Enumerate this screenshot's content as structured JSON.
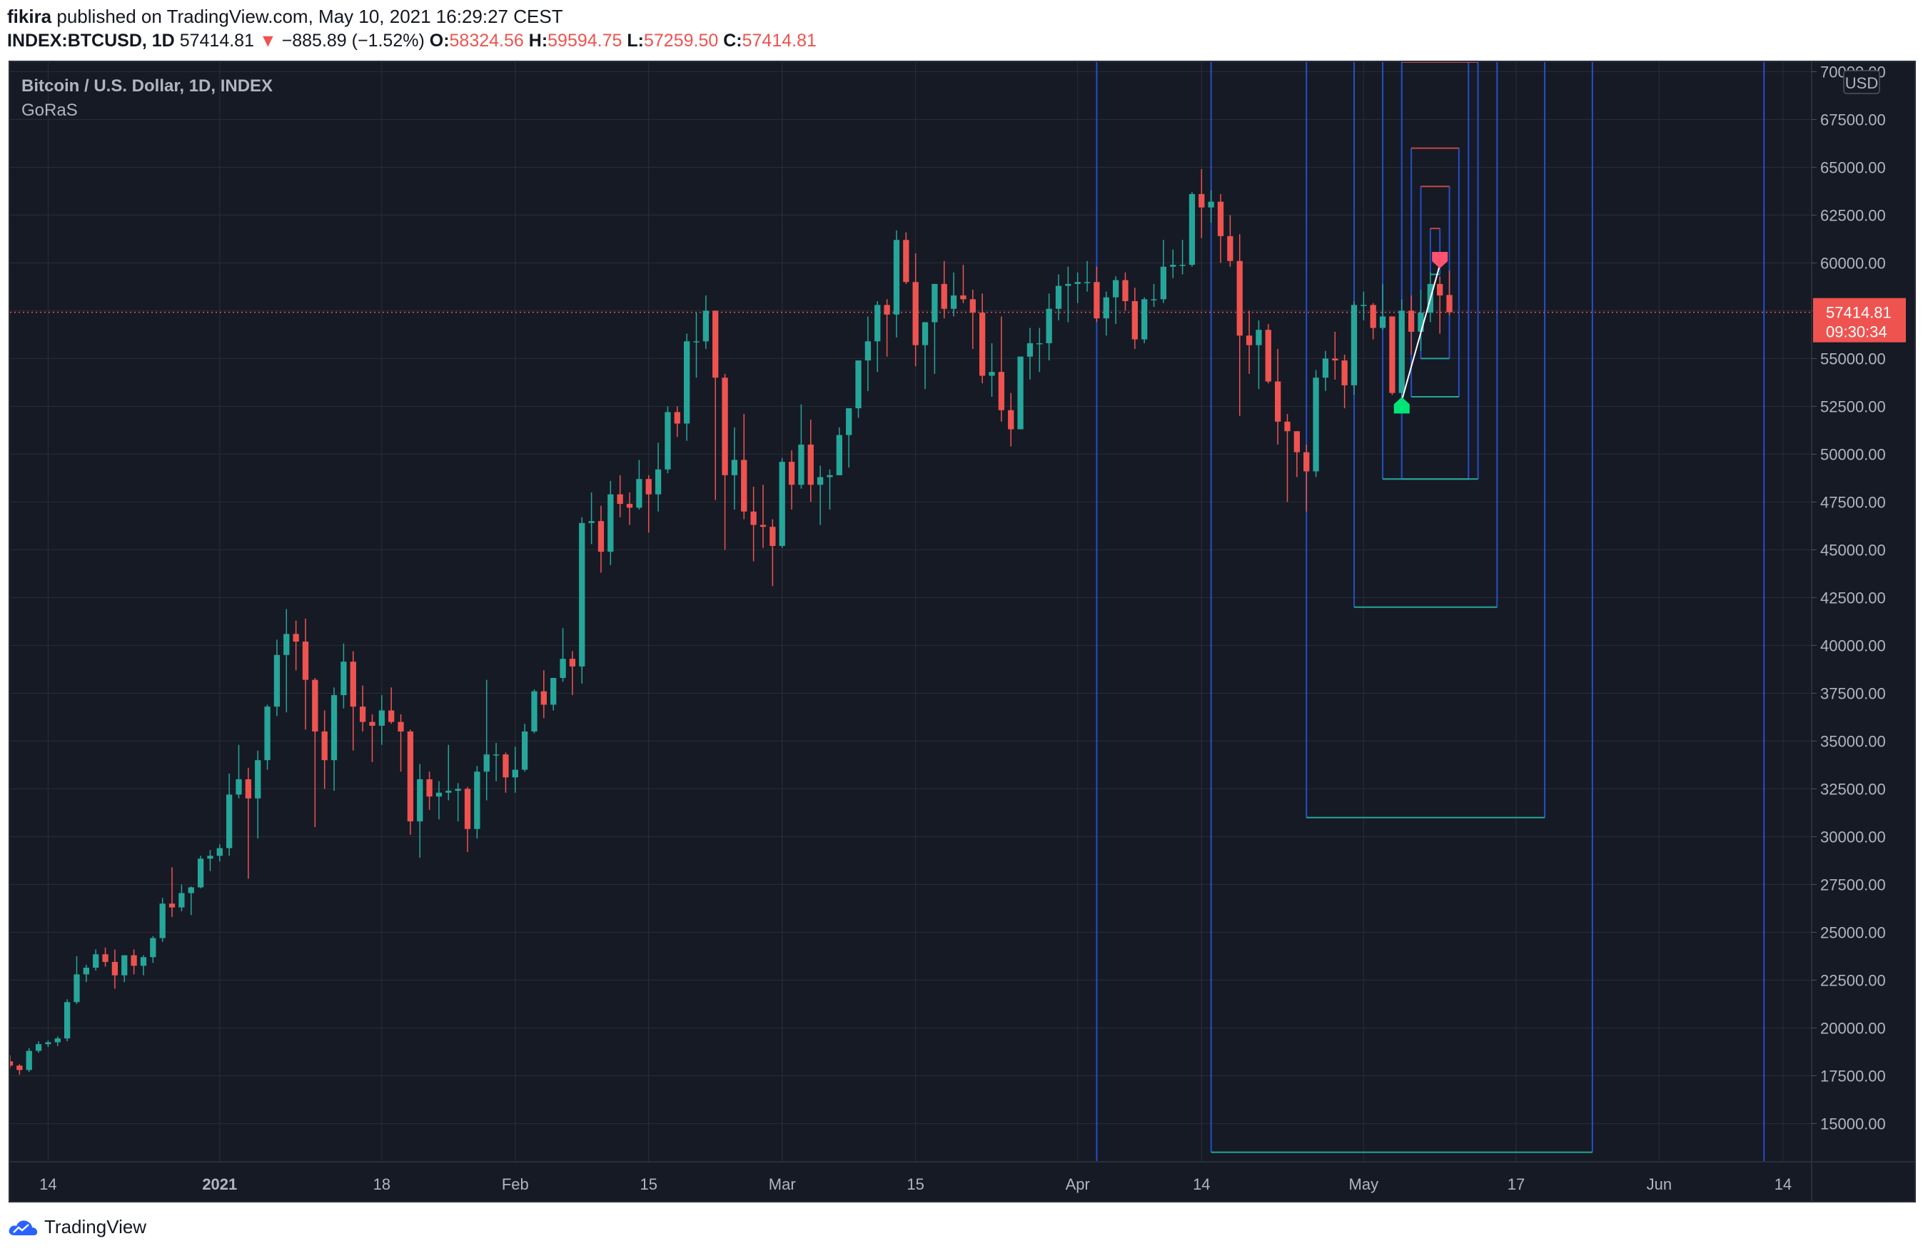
{
  "publish": {
    "user": "fikira",
    "text": "published on TradingView.com, May 10, 2021 16:29:27 CEST"
  },
  "symbol": {
    "ticker": "INDEX:BTCUSD, 1D",
    "last": "57414.81",
    "arrow": "▼",
    "change": "−885.89 (−1.52%)",
    "o_label": "O:",
    "o": "58324.56",
    "h_label": "H:",
    "h": "59594.75",
    "l_label": "L:",
    "l": "57259.50",
    "c_label": "C:",
    "c": "57414.81"
  },
  "legend": {
    "title": "Bitcoin / U.S. Dollar, 1D, INDEX",
    "indicator": "GoRaS"
  },
  "price_axis": {
    "currency": "USD",
    "last_price_label": "57414.81",
    "countdown": "09:30:34"
  },
  "footer": {
    "brand": "TradingView"
  },
  "colors": {
    "background": "#161a25",
    "grid": "#2a2e39",
    "up": "#26a69a",
    "down": "#ef5350",
    "box_side": "#2962ff",
    "box_low": "#26a69a",
    "box_high": "#ef5350",
    "signal_up": "#00e676",
    "signal_down": "#ff5370"
  },
  "chart_data": {
    "type": "candlestick",
    "title": "Bitcoin / U.S. Dollar, 1D, INDEX",
    "x_axis_labels": [
      {
        "date": "2020-12-14",
        "label": "14"
      },
      {
        "date": "2021-01-01",
        "label": "2021"
      },
      {
        "date": "2021-01-18",
        "label": "18"
      },
      {
        "date": "2021-02-01",
        "label": "Feb"
      },
      {
        "date": "2021-02-15",
        "label": "15"
      },
      {
        "date": "2021-03-01",
        "label": "Mar"
      },
      {
        "date": "2021-03-15",
        "label": "15"
      },
      {
        "date": "2021-04-01",
        "label": "Apr"
      },
      {
        "date": "2021-04-14",
        "label": "14"
      },
      {
        "date": "2021-05-01",
        "label": "May"
      },
      {
        "date": "2021-05-17",
        "label": "17"
      },
      {
        "date": "2021-06-01",
        "label": "Jun"
      },
      {
        "date": "2021-06-14",
        "label": "14"
      }
    ],
    "y_ticks": [
      15000,
      17500,
      20000,
      22500,
      25000,
      27500,
      30000,
      32500,
      35000,
      37500,
      40000,
      42500,
      45000,
      47500,
      50000,
      52500,
      55000,
      57500,
      60000,
      62500,
      65000,
      67500,
      70000
    ],
    "ylim": [
      13000,
      70500
    ],
    "x_range": [
      "2020-12-10",
      "2021-06-17"
    ],
    "last_price": 57414.81,
    "candles": [
      [
        "2020-12-10",
        18250,
        18560,
        17900,
        18030
      ],
      [
        "2020-12-11",
        18030,
        18100,
        17550,
        17800
      ],
      [
        "2020-12-12",
        17800,
        18950,
        17700,
        18800
      ],
      [
        "2020-12-13",
        18800,
        19300,
        18700,
        19150
      ],
      [
        "2020-12-14",
        19150,
        19350,
        19000,
        19250
      ],
      [
        "2020-12-15",
        19250,
        19550,
        19050,
        19450
      ],
      [
        "2020-12-16",
        19450,
        21500,
        19300,
        21350
      ],
      [
        "2020-12-17",
        21350,
        23750,
        21250,
        22800
      ],
      [
        "2020-12-18",
        22800,
        23300,
        22400,
        23150
      ],
      [
        "2020-12-19",
        23150,
        24100,
        23000,
        23850
      ],
      [
        "2020-12-20",
        23850,
        24200,
        23200,
        23450
      ],
      [
        "2020-12-21",
        23450,
        24100,
        22050,
        22750
      ],
      [
        "2020-12-22",
        22750,
        23800,
        22400,
        23800
      ],
      [
        "2020-12-23",
        23800,
        24100,
        22800,
        23250
      ],
      [
        "2020-12-24",
        23250,
        23800,
        22750,
        23700
      ],
      [
        "2020-12-25",
        23700,
        24800,
        23400,
        24700
      ],
      [
        "2020-12-26",
        24700,
        26800,
        24500,
        26500
      ],
      [
        "2020-12-27",
        26500,
        28400,
        25800,
        26300
      ],
      [
        "2020-12-28",
        26300,
        27500,
        26100,
        27050
      ],
      [
        "2020-12-29",
        27050,
        27400,
        25900,
        27350
      ],
      [
        "2020-12-30",
        27350,
        29000,
        27300,
        28850
      ],
      [
        "2020-12-31",
        28850,
        29300,
        28200,
        29000
      ],
      [
        "2021-01-01",
        29000,
        29600,
        28700,
        29400
      ],
      [
        "2021-01-02",
        29400,
        33300,
        29000,
        32200
      ],
      [
        "2021-01-03",
        32200,
        34800,
        32000,
        33000
      ],
      [
        "2021-01-04",
        33000,
        33600,
        27800,
        32000
      ],
      [
        "2021-01-05",
        32000,
        34500,
        29900,
        34000
      ],
      [
        "2021-01-06",
        34000,
        36900,
        33500,
        36800
      ],
      [
        "2021-01-07",
        36800,
        40300,
        36300,
        39500
      ],
      [
        "2021-01-08",
        39500,
        41900,
        36500,
        40600
      ],
      [
        "2021-01-09",
        40600,
        41300,
        38700,
        40200
      ],
      [
        "2021-01-10",
        40200,
        41400,
        35600,
        38200
      ],
      [
        "2021-01-11",
        38200,
        38300,
        30500,
        35500
      ],
      [
        "2021-01-12",
        35500,
        36600,
        32500,
        34000
      ],
      [
        "2021-01-13",
        34000,
        37800,
        32400,
        37400
      ],
      [
        "2021-01-14",
        37400,
        40100,
        36700,
        39150
      ],
      [
        "2021-01-15",
        39150,
        39700,
        34500,
        36800
      ],
      [
        "2021-01-16",
        36800,
        37900,
        35500,
        36000
      ],
      [
        "2021-01-17",
        36000,
        36400,
        33900,
        35800
      ],
      [
        "2021-01-18",
        35800,
        37400,
        34800,
        36600
      ],
      [
        "2021-01-19",
        36600,
        37800,
        35900,
        36000
      ],
      [
        "2021-01-20",
        36000,
        36400,
        33400,
        35500
      ],
      [
        "2021-01-21",
        35500,
        35600,
        30100,
        30800
      ],
      [
        "2021-01-22",
        30800,
        33800,
        28900,
        33000
      ],
      [
        "2021-01-23",
        33000,
        33400,
        31400,
        32100
      ],
      [
        "2021-01-24",
        32100,
        32900,
        30900,
        32300
      ],
      [
        "2021-01-25",
        32300,
        34800,
        31900,
        32400
      ],
      [
        "2021-01-26",
        32400,
        32800,
        30800,
        32500
      ],
      [
        "2021-01-27",
        32500,
        32600,
        29200,
        30400
      ],
      [
        "2021-01-28",
        30400,
        33700,
        29900,
        33400
      ],
      [
        "2021-01-29",
        33400,
        38200,
        31900,
        34300
      ],
      [
        "2021-01-30",
        34300,
        34900,
        32900,
        34300
      ],
      [
        "2021-01-31",
        34300,
        34400,
        32300,
        33100
      ],
      [
        "2021-02-01",
        33100,
        34700,
        32300,
        33500
      ],
      [
        "2021-02-02",
        33500,
        35900,
        33400,
        35500
      ],
      [
        "2021-02-03",
        35500,
        37700,
        35400,
        37600
      ],
      [
        "2021-02-04",
        37600,
        38700,
        36200,
        36900
      ],
      [
        "2021-02-05",
        36900,
        38300,
        36600,
        38300
      ],
      [
        "2021-02-06",
        38300,
        40900,
        38100,
        39300
      ],
      [
        "2021-02-07",
        39300,
        39700,
        37400,
        38900
      ],
      [
        "2021-02-08",
        38900,
        46700,
        38000,
        46400
      ],
      [
        "2021-02-09",
        46400,
        48000,
        45300,
        46500
      ],
      [
        "2021-02-10",
        46500,
        47300,
        43800,
        44900
      ],
      [
        "2021-02-11",
        44900,
        48600,
        44200,
        47900
      ],
      [
        "2021-02-12",
        47900,
        48900,
        46700,
        47400
      ],
      [
        "2021-02-13",
        47400,
        48000,
        46300,
        47200
      ],
      [
        "2021-02-14",
        47200,
        49700,
        47100,
        48700
      ],
      [
        "2021-02-15",
        48700,
        48900,
        45900,
        47900
      ],
      [
        "2021-02-16",
        47900,
        50600,
        47000,
        49200
      ],
      [
        "2021-02-17",
        49200,
        52500,
        49000,
        52200
      ],
      [
        "2021-02-18",
        52200,
        52500,
        50900,
        51600
      ],
      [
        "2021-02-19",
        51600,
        56300,
        50700,
        55900
      ],
      [
        "2021-02-20",
        55900,
        57400,
        54000,
        55900
      ],
      [
        "2021-02-21",
        55900,
        58300,
        55500,
        57500
      ],
      [
        "2021-02-22",
        57500,
        57500,
        47600,
        54000
      ],
      [
        "2021-02-23",
        54000,
        54200,
        45000,
        48900
      ],
      [
        "2021-02-24",
        48900,
        51400,
        47100,
        49700
      ],
      [
        "2021-02-25",
        49700,
        52100,
        46600,
        47000
      ],
      [
        "2021-02-26",
        47000,
        48300,
        44400,
        46300
      ],
      [
        "2021-02-27",
        46300,
        48400,
        45100,
        46200
      ],
      [
        "2021-02-28",
        46200,
        46600,
        43100,
        45200
      ],
      [
        "2021-03-01",
        45200,
        49800,
        45100,
        49600
      ],
      [
        "2021-03-02",
        49600,
        50200,
        47100,
        48400
      ],
      [
        "2021-03-03",
        48400,
        52600,
        48200,
        50500
      ],
      [
        "2021-03-04",
        50500,
        51800,
        47500,
        48400
      ],
      [
        "2021-03-05",
        48400,
        49400,
        46300,
        48800
      ],
      [
        "2021-03-06",
        48800,
        49200,
        47100,
        48900
      ],
      [
        "2021-03-07",
        48900,
        51400,
        48900,
        51000
      ],
      [
        "2021-03-08",
        51000,
        52400,
        49300,
        52400
      ],
      [
        "2021-03-09",
        52400,
        54900,
        51900,
        54900
      ],
      [
        "2021-03-10",
        54900,
        57200,
        53300,
        55900
      ],
      [
        "2021-03-11",
        55900,
        58000,
        54300,
        57800
      ],
      [
        "2021-03-12",
        57800,
        58100,
        55100,
        57300
      ],
      [
        "2021-03-13",
        57300,
        61700,
        56100,
        61200
      ],
      [
        "2021-03-14",
        61200,
        61600,
        58900,
        59000
      ],
      [
        "2021-03-15",
        59000,
        60500,
        54600,
        55700
      ],
      [
        "2021-03-16",
        55700,
        56900,
        53400,
        56900
      ],
      [
        "2021-03-17",
        56900,
        58900,
        54200,
        58900
      ],
      [
        "2021-03-18",
        58900,
        60100,
        57100,
        57600
      ],
      [
        "2021-03-19",
        57600,
        59500,
        57200,
        58300
      ],
      [
        "2021-03-20",
        58300,
        59900,
        57900,
        58100
      ],
      [
        "2021-03-21",
        58100,
        58600,
        55500,
        57400
      ],
      [
        "2021-03-22",
        57400,
        58400,
        53700,
        54100
      ],
      [
        "2021-03-23",
        54100,
        55800,
        53000,
        54300
      ],
      [
        "2021-03-24",
        54300,
        57200,
        51700,
        52300
      ],
      [
        "2021-03-25",
        52300,
        53200,
        50400,
        51300
      ],
      [
        "2021-03-26",
        51300,
        55100,
        51300,
        55100
      ],
      [
        "2021-03-27",
        55100,
        56600,
        53900,
        55800
      ],
      [
        "2021-03-28",
        55800,
        56600,
        54300,
        55800
      ],
      [
        "2021-03-29",
        55800,
        58400,
        54900,
        57600
      ],
      [
        "2021-03-30",
        57600,
        59400,
        57000,
        58800
      ],
      [
        "2021-03-31",
        58800,
        59800,
        56900,
        58900
      ],
      [
        "2021-04-01",
        58900,
        59500,
        57900,
        59000
      ],
      [
        "2021-04-02",
        59000,
        60100,
        58500,
        59000
      ],
      [
        "2021-04-03",
        59000,
        59800,
        56900,
        57100
      ],
      [
        "2021-04-04",
        57100,
        58500,
        56200,
        58200
      ],
      [
        "2021-04-05",
        58200,
        59300,
        56800,
        59100
      ],
      [
        "2021-04-06",
        59100,
        59500,
        57500,
        58000
      ],
      [
        "2021-04-07",
        58000,
        58700,
        55500,
        56000
      ],
      [
        "2021-04-08",
        56000,
        58200,
        55800,
        58100
      ],
      [
        "2021-04-09",
        58100,
        58900,
        57700,
        58100
      ],
      [
        "2021-04-10",
        58100,
        61200,
        57900,
        59800
      ],
      [
        "2021-04-11",
        59800,
        60700,
        59200,
        59900
      ],
      [
        "2021-04-12",
        59900,
        61200,
        59400,
        59900
      ],
      [
        "2021-04-13",
        59900,
        63700,
        59800,
        63600
      ],
      [
        "2021-04-14",
        63600,
        64900,
        61300,
        62900
      ],
      [
        "2021-04-15",
        62900,
        63800,
        62100,
        63200
      ],
      [
        "2021-04-16",
        63200,
        63600,
        60000,
        61400
      ],
      [
        "2021-04-17",
        61400,
        62500,
        59800,
        60100
      ],
      [
        "2021-04-18",
        60100,
        61500,
        52000,
        56200
      ],
      [
        "2021-04-19",
        56200,
        57500,
        54200,
        55700
      ],
      [
        "2021-04-20",
        55700,
        57000,
        53400,
        56500
      ],
      [
        "2021-04-21",
        56500,
        56800,
        53700,
        53800
      ],
      [
        "2021-04-22",
        53800,
        55500,
        50500,
        51700
      ],
      [
        "2021-04-23",
        51700,
        52100,
        47500,
        51200
      ],
      [
        "2021-04-24",
        51200,
        51200,
        48800,
        50100
      ],
      [
        "2021-04-25",
        50100,
        50500,
        47000,
        49100
      ],
      [
        "2021-04-26",
        49100,
        54400,
        48800,
        54000
      ],
      [
        "2021-04-27",
        54000,
        55400,
        53300,
        55000
      ],
      [
        "2021-04-28",
        55000,
        56400,
        53900,
        54900
      ],
      [
        "2021-04-29",
        54900,
        55200,
        52400,
        53600
      ],
      [
        "2021-04-30",
        53600,
        58000,
        53100,
        57800
      ],
      [
        "2021-05-01",
        57800,
        58500,
        57000,
        57800
      ],
      [
        "2021-05-02",
        57800,
        57900,
        56000,
        56600
      ],
      [
        "2021-05-03",
        56600,
        58900,
        56500,
        57200
      ],
      [
        "2021-05-04",
        57200,
        57200,
        53100,
        53200
      ],
      [
        "2021-05-05",
        53200,
        58100,
        52900,
        57500
      ],
      [
        "2021-05-06",
        57500,
        58300,
        55200,
        56400
      ],
      [
        "2021-05-07",
        56400,
        58600,
        55400,
        57400
      ],
      [
        "2021-05-08",
        57400,
        59500,
        56900,
        58900
      ],
      [
        "2021-05-09",
        58900,
        59300,
        56300,
        58300
      ],
      [
        "2021-05-10",
        58324.56,
        59594.75,
        57259.5,
        57414.81
      ]
    ],
    "range_boxes": [
      {
        "start": "2021-04-03",
        "end": "2021-06-12",
        "high": 71000,
        "low": 13000
      },
      {
        "start": "2021-04-15",
        "end": "2021-05-25",
        "high": 71000,
        "low": 13500
      },
      {
        "start": "2021-04-25",
        "end": "2021-05-20",
        "high": 71000,
        "low": 31000
      },
      {
        "start": "2021-04-30",
        "end": "2021-05-15",
        "high": 71000,
        "low": 42000
      },
      {
        "start": "2021-05-03",
        "end": "2021-05-12",
        "high": 71000,
        "low": 48700
      },
      {
        "start": "2021-05-05",
        "end": "2021-05-13",
        "high": 70500,
        "low": 48700
      },
      {
        "start": "2021-05-06",
        "end": "2021-05-11",
        "high": 66000,
        "low": 53000
      },
      {
        "start": "2021-05-07",
        "end": "2021-05-10",
        "high": 64000,
        "low": 55000
      },
      {
        "start": "2021-05-08",
        "end": "2021-05-09",
        "high": 61800,
        "low": 59400
      }
    ],
    "signals": [
      {
        "date": "2021-05-05",
        "price": 52500,
        "type": "buy"
      },
      {
        "date": "2021-05-09",
        "price": 60200,
        "type": "sell"
      }
    ],
    "signal_line": [
      [
        "2021-05-05",
        52800
      ],
      [
        "2021-05-09",
        59900
      ]
    ]
  }
}
